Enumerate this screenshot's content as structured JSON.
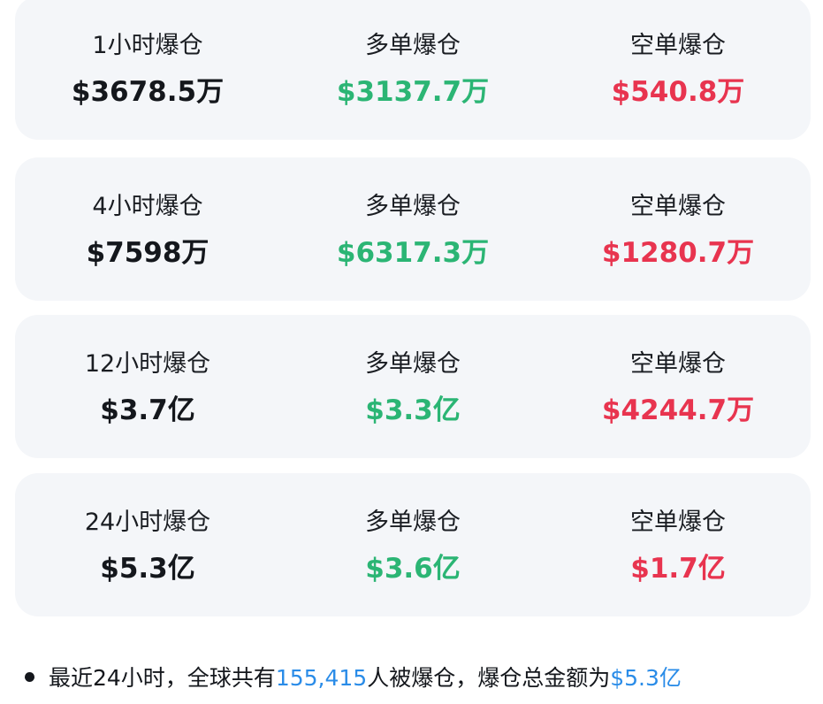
{
  "colors": {
    "long": "#2bb574",
    "short": "#e8344f",
    "highlight": "#2a8ce8",
    "card_bg": "#f4f6f9"
  },
  "cards": [
    {
      "total_label": "1小时爆仓",
      "total_value": "$3678.5万",
      "long_label": "多单爆仓",
      "long_value": "$3137.7万",
      "short_label": "空单爆仓",
      "short_value": "$540.8万"
    },
    {
      "total_label": "4小时爆仓",
      "total_value": "$7598万",
      "long_label": "多单爆仓",
      "long_value": "$6317.3万",
      "short_label": "空单爆仓",
      "short_value": "$1280.7万"
    },
    {
      "total_label": "12小时爆仓",
      "total_value": "$3.7亿",
      "long_label": "多单爆仓",
      "long_value": "$3.3亿",
      "short_label": "空单爆仓",
      "short_value": "$4244.7万"
    },
    {
      "total_label": "24小时爆仓",
      "total_value": "$5.3亿",
      "long_label": "多单爆仓",
      "long_value": "$3.6亿",
      "short_label": "空单爆仓",
      "short_value": "$1.7亿"
    }
  ],
  "summary": {
    "prefix": "最近24小时，全球共有",
    "people_count": "155,415",
    "middle": "人被爆仓，爆仓总金额为",
    "total_amount": "$5.3亿"
  }
}
